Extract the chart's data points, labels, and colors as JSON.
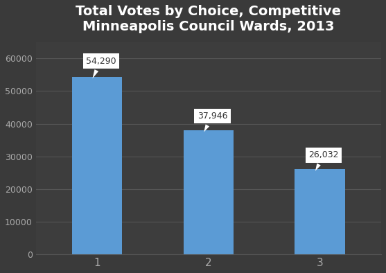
{
  "categories": [
    "1",
    "2",
    "3"
  ],
  "values": [
    54290,
    37946,
    26032
  ],
  "bar_color": "#5b9bd5",
  "background_color": "#3a3a3a",
  "plot_bg_color": "#3d3d3d",
  "title": "Total Votes by Choice, Competitive\nMinneapolis Council Wards, 2013",
  "title_color": "#ffffff",
  "title_fontsize": 14,
  "tick_color": "#aaaaaa",
  "grid_color": "#555555",
  "ylim": [
    0,
    65000
  ],
  "yticks": [
    0,
    10000,
    20000,
    30000,
    40000,
    50000,
    60000
  ],
  "annotation_labels": [
    "54,290",
    "37,946",
    "26,032"
  ],
  "annotation_bg": "#ffffff",
  "annotation_text_color": "#333333",
  "annotation_fontsize": 9,
  "bar_width": 0.45
}
